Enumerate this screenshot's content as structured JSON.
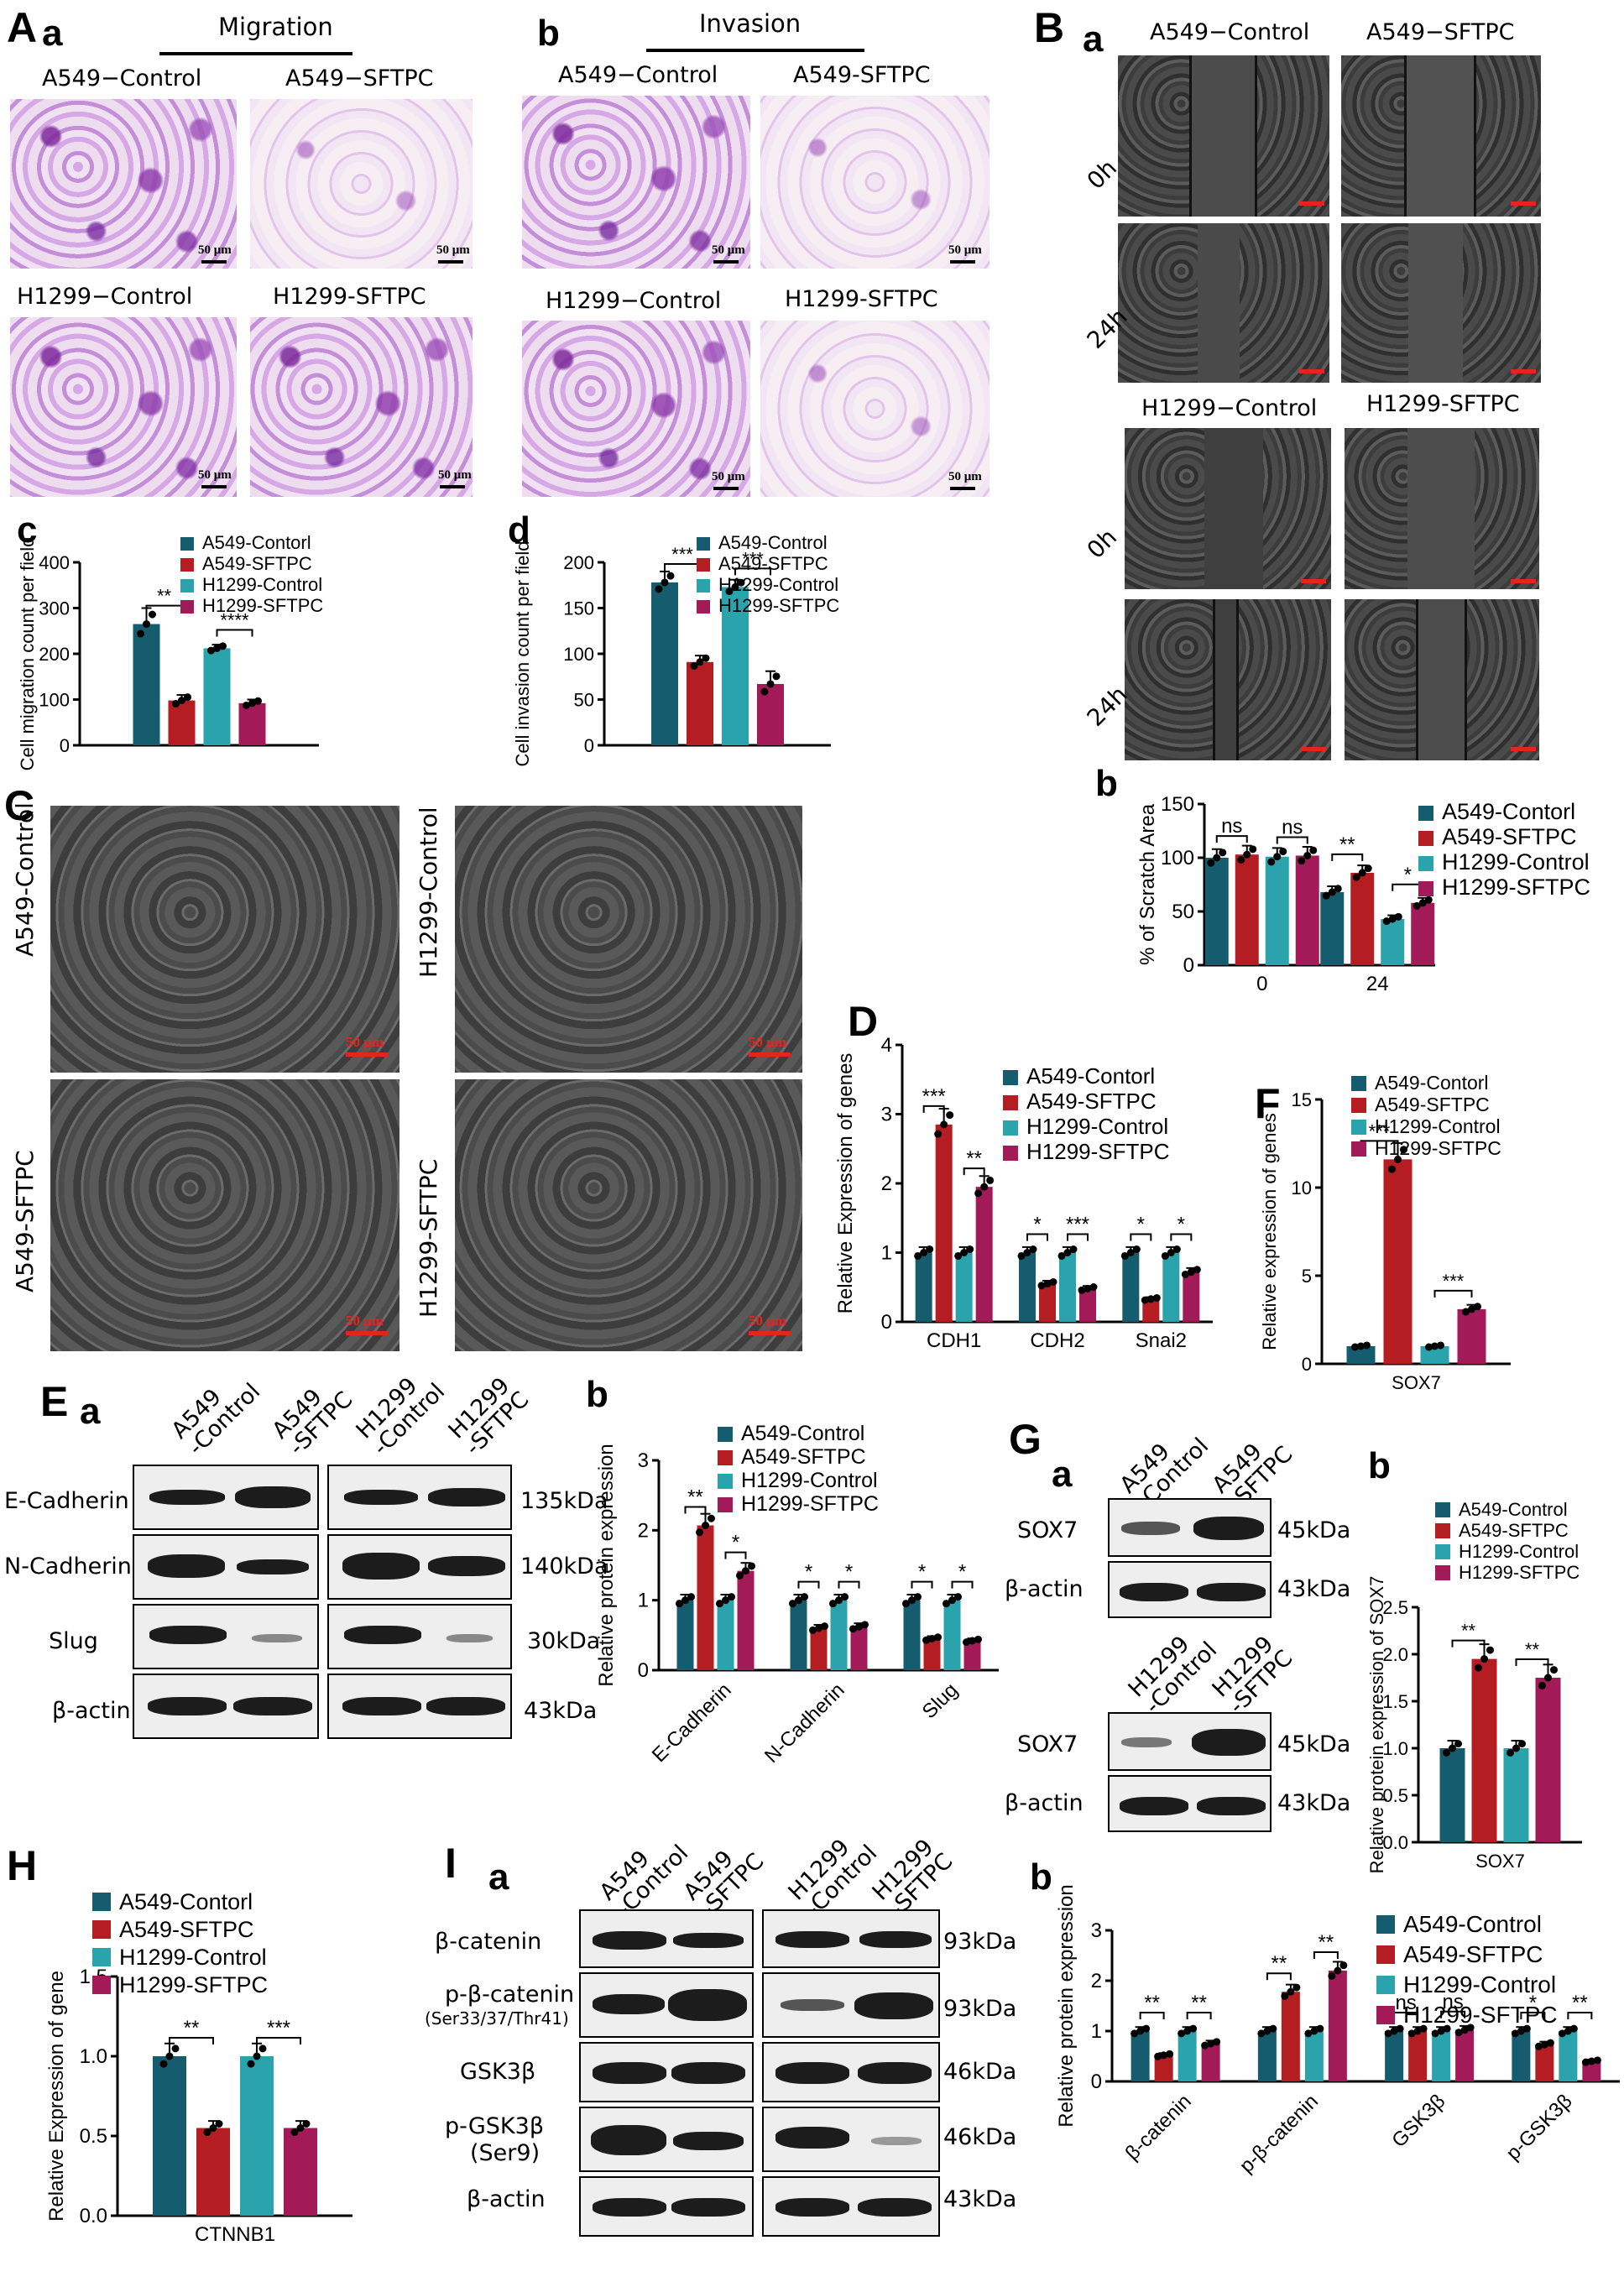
{
  "panels": {
    "A": "A",
    "B": "B",
    "C": "C",
    "D": "D",
    "E": "E",
    "F": "F",
    "G": "G",
    "H": "H",
    "I": "I"
  },
  "sub": {
    "a": "a",
    "b": "b",
    "c": "c",
    "d": "d"
  },
  "titles": {
    "migration": "Migration",
    "invasion": "Invasion"
  },
  "labels": {
    "a549_control": "A549−Control",
    "a549_sftpc": "A549−SFTPC",
    "h1299_control": "H1299−Control",
    "h1299_sftpc": "H1299-SFTPC",
    "a549_control_c": "A549-Control",
    "a549_sftpc_c": "A549-SFTPC",
    "h1299_control_c": "H1299-Control",
    "h1299_sftpc_c": "H1299-SFTPC",
    "t0": "0h",
    "t24": "24h"
  },
  "scale": {
    "um50": "50 μm"
  },
  "blot_headers": {
    "a549_control": [
      "A549",
      "-Control"
    ],
    "a549_sftpc": [
      "A549",
      "-SFTPC"
    ],
    "h1299_control": [
      "H1299",
      "-Control"
    ],
    "h1299_sftpc": [
      "H1299",
      "-SFTPC"
    ]
  },
  "blotE": {
    "rows": [
      "E-Cadherin",
      "N-Cadherin",
      "Slug",
      "β-actin"
    ],
    "kda": [
      "135kDa",
      "140kDa",
      "30kDa",
      "43kDa"
    ]
  },
  "blotG": {
    "rows": [
      "SOX7",
      "β-actin"
    ],
    "kda": [
      "45kDa",
      "43kDa"
    ]
  },
  "blotI": {
    "rows": [
      "β-catenin",
      "p-β-catenin",
      "GSK3β",
      "p-GSK3β",
      "β-actin"
    ],
    "subs": [
      "(Ser33/37/Thr41)",
      "(Ser9)"
    ],
    "kda": [
      "93kDa",
      "93kDa",
      "46kDa",
      "46kDa",
      "43kDa"
    ]
  },
  "colors": {
    "a549_control": "#155d6e",
    "a549_sftpc": "#b41e23",
    "h1299_control": "#2aa3ad",
    "h1299_sftpc": "#a31a59"
  },
  "chart_data": [
    {
      "id": "Ac",
      "type": "bar",
      "ylabel": "Cell migration count per field",
      "ylim": [
        0,
        400
      ],
      "yticks": [
        0,
        100,
        200,
        300,
        400
      ],
      "legend": [
        "A549-Contorl",
        "A549-SFTPC",
        "H1299-Control",
        "H1299-SFTPC"
      ],
      "categories": [
        ""
      ],
      "series": [
        {
          "name": "A549-Contorl",
          "values": [
            265
          ]
        },
        {
          "name": "A549-SFTPC",
          "values": [
            98
          ]
        },
        {
          "name": "H1299-Control",
          "values": [
            212
          ]
        },
        {
          "name": "H1299-SFTPC",
          "values": [
            92
          ]
        }
      ],
      "errors": [
        35,
        12,
        8,
        8
      ],
      "sig": [
        {
          "label": "**",
          "a": 0,
          "b": 1
        },
        {
          "label": "****",
          "a": 2,
          "b": 3
        }
      ]
    },
    {
      "id": "Ad",
      "type": "bar",
      "ylabel": "Cell invasion count per field",
      "ylim": [
        0,
        200
      ],
      "yticks": [
        0,
        50,
        100,
        150,
        200
      ],
      "legend": [
        "A549-Control",
        "A549-SFTPC",
        "H1299-Control",
        "H1299-SFTPC"
      ],
      "categories": [
        ""
      ],
      "series": [
        {
          "name": "A549-Control",
          "values": [
            178
          ]
        },
        {
          "name": "A549-SFTPC",
          "values": [
            91
          ]
        },
        {
          "name": "H1299-Control",
          "values": [
            173
          ]
        },
        {
          "name": "H1299-SFTPC",
          "values": [
            67
          ]
        }
      ],
      "errors": [
        12,
        7,
        8,
        14
      ],
      "sig": [
        {
          "label": "***",
          "a": 0,
          "b": 1
        },
        {
          "label": "***",
          "a": 2,
          "b": 3
        }
      ]
    },
    {
      "id": "Bb",
      "type": "bar",
      "ylabel": "% of Scratch Area",
      "ylim": [
        0,
        150
      ],
      "yticks": [
        0,
        50,
        100,
        150
      ],
      "legend": [
        "A549-Contorl",
        "A549-SFTPC",
        "H1299-Control",
        "H1299-SFTPC"
      ],
      "categories": [
        "0",
        "24"
      ],
      "series": [
        {
          "name": "A549-Contorl",
          "values": [
            100,
            68
          ]
        },
        {
          "name": "A549-SFTPC",
          "values": [
            103,
            86
          ]
        },
        {
          "name": "H1299-Control",
          "values": [
            101,
            43
          ]
        },
        {
          "name": "H1299-SFTPC",
          "values": [
            102,
            58
          ]
        }
      ],
      "sig": [
        {
          "label": "ns",
          "g": 0,
          "a": 0,
          "b": 1
        },
        {
          "label": "ns",
          "g": 0,
          "a": 2,
          "b": 3
        },
        {
          "label": "**",
          "g": 1,
          "a": 0,
          "b": 1
        },
        {
          "label": "*",
          "g": 1,
          "a": 2,
          "b": 3
        }
      ]
    },
    {
      "id": "D",
      "type": "bar",
      "ylabel": "Relative Expression of genes",
      "ylim": [
        0,
        4
      ],
      "yticks": [
        0,
        1,
        2,
        3,
        4
      ],
      "legend": [
        "A549-Contorl",
        "A549-SFTPC",
        "H1299-Control",
        "H1299-SFTPC"
      ],
      "categories": [
        "CDH1",
        "CDH2",
        "Snai2"
      ],
      "series": [
        {
          "name": "A549-Contorl",
          "values": [
            1.0,
            1.0,
            1.0
          ]
        },
        {
          "name": "A549-SFTPC",
          "values": [
            2.85,
            0.55,
            0.33
          ]
        },
        {
          "name": "H1299-Control",
          "values": [
            1.0,
            1.0,
            1.0
          ]
        },
        {
          "name": "H1299-SFTPC",
          "values": [
            1.95,
            0.48,
            0.72
          ]
        }
      ],
      "sig": [
        {
          "label": "***",
          "g": 0,
          "a": 0,
          "b": 1
        },
        {
          "label": "**",
          "g": 0,
          "a": 2,
          "b": 3
        },
        {
          "label": "*",
          "g": 1,
          "a": 0,
          "b": 1
        },
        {
          "label": "***",
          "g": 1,
          "a": 2,
          "b": 3
        },
        {
          "label": "*",
          "g": 2,
          "a": 0,
          "b": 1
        },
        {
          "label": "*",
          "g": 2,
          "a": 2,
          "b": 3
        }
      ]
    },
    {
      "id": "Eb",
      "type": "bar",
      "ylabel": "Relative protein expression",
      "ylim": [
        0,
        3
      ],
      "yticks": [
        0,
        1,
        2,
        3
      ],
      "legend": [
        "A549-Control",
        "A549-SFTPC",
        "H1299-Control",
        "H1299-SFTPC"
      ],
      "categories": [
        "E-Cadherin",
        "N-Cadherin",
        "Slug"
      ],
      "series": [
        {
          "name": "A549-Control",
          "values": [
            1.0,
            1.0,
            1.0
          ]
        },
        {
          "name": "A549-SFTPC",
          "values": [
            2.07,
            0.6,
            0.45
          ]
        },
        {
          "name": "H1299-Control",
          "values": [
            1.0,
            1.0,
            1.0
          ]
        },
        {
          "name": "H1299-SFTPC",
          "values": [
            1.42,
            0.62,
            0.42
          ]
        }
      ],
      "sig": [
        {
          "label": "**",
          "g": 0,
          "a": 0,
          "b": 1
        },
        {
          "label": "*",
          "g": 0,
          "a": 2,
          "b": 3
        },
        {
          "label": "*",
          "g": 1,
          "a": 0,
          "b": 1
        },
        {
          "label": "*",
          "g": 1,
          "a": 2,
          "b": 3
        },
        {
          "label": "*",
          "g": 2,
          "a": 0,
          "b": 1
        },
        {
          "label": "*",
          "g": 2,
          "a": 2,
          "b": 3
        }
      ]
    },
    {
      "id": "F",
      "type": "bar",
      "ylabel": "Relative expression of genes",
      "ylim": [
        0,
        15
      ],
      "yticks": [
        0,
        5,
        10,
        15
      ],
      "legend": [
        "A549-Contorl",
        "A549-SFTPC",
        "H1299-Control",
        "H1299-SFTPC"
      ],
      "categories": [
        "SOX7"
      ],
      "series": [
        {
          "name": "A549-Contorl",
          "values": [
            1.0
          ]
        },
        {
          "name": "A549-SFTPC",
          "values": [
            11.6
          ]
        },
        {
          "name": "H1299-Control",
          "values": [
            1.0
          ]
        },
        {
          "name": "H1299-SFTPC",
          "values": [
            3.1
          ]
        }
      ],
      "sig": [
        {
          "label": "***",
          "g": 0,
          "a": 0,
          "b": 1
        },
        {
          "label": "***",
          "g": 0,
          "a": 2,
          "b": 3
        }
      ]
    },
    {
      "id": "Gb",
      "type": "bar",
      "ylabel": "Relative protein expression of SOX7",
      "ylim": [
        0,
        2.5
      ],
      "yticks": [
        0.0,
        0.5,
        1.0,
        1.5,
        2.0,
        2.5
      ],
      "legend": [
        "A549-Control",
        "A549-SFTPC",
        "H1299-Control",
        "H1299-SFTPC"
      ],
      "categories": [
        "SOX7"
      ],
      "series": [
        {
          "name": "A549-Control",
          "values": [
            1.0
          ]
        },
        {
          "name": "A549-SFTPC",
          "values": [
            1.95
          ]
        },
        {
          "name": "H1299-Control",
          "values": [
            1.0
          ]
        },
        {
          "name": "H1299-SFTPC",
          "values": [
            1.75
          ]
        }
      ],
      "sig": [
        {
          "label": "**",
          "g": 0,
          "a": 0,
          "b": 1
        },
        {
          "label": "**",
          "g": 0,
          "a": 2,
          "b": 3
        }
      ]
    },
    {
      "id": "H",
      "type": "bar",
      "ylabel": "Relative Expression of gene",
      "ylim": [
        0,
        1.5
      ],
      "yticks": [
        0.0,
        0.5,
        1.0,
        1.5
      ],
      "legend": [
        "A549-Contorl",
        "A549-SFTPC",
        "H1299-Control",
        "H1299-SFTPC"
      ],
      "categories": [
        "CTNNB1"
      ],
      "series": [
        {
          "name": "A549-Contorl",
          "values": [
            1.0
          ]
        },
        {
          "name": "A549-SFTPC",
          "values": [
            0.55
          ]
        },
        {
          "name": "H1299-Control",
          "values": [
            1.0
          ]
        },
        {
          "name": "H1299-SFTPC",
          "values": [
            0.55
          ]
        }
      ],
      "sig": [
        {
          "label": "**",
          "g": 0,
          "a": 0,
          "b": 1
        },
        {
          "label": "***",
          "g": 0,
          "a": 2,
          "b": 3
        }
      ]
    },
    {
      "id": "Ib",
      "type": "bar",
      "ylabel": "Relative protein expression",
      "ylim": [
        0,
        3
      ],
      "yticks": [
        0,
        1,
        2,
        3
      ],
      "legend": [
        "A549-Control",
        "A549-SFTPC",
        "H1299-Control",
        "H1299-SFTPC"
      ],
      "categories": [
        "β-catenin",
        "p-β-catenin",
        "GSK3β",
        "p-GSK3β"
      ],
      "series": [
        {
          "name": "A549-Control",
          "values": [
            1.0,
            1.0,
            1.0,
            1.0
          ]
        },
        {
          "name": "A549-SFTPC",
          "values": [
            0.52,
            1.78,
            1.0,
            0.73
          ]
        },
        {
          "name": "H1299-Control",
          "values": [
            1.0,
            1.0,
            1.0,
            1.0
          ]
        },
        {
          "name": "H1299-SFTPC",
          "values": [
            0.75,
            2.2,
            1.02,
            0.4
          ]
        }
      ],
      "sig": [
        {
          "label": "**",
          "g": 0,
          "a": 0,
          "b": 1
        },
        {
          "label": "**",
          "g": 0,
          "a": 2,
          "b": 3
        },
        {
          "label": "**",
          "g": 1,
          "a": 0,
          "b": 1
        },
        {
          "label": "**",
          "g": 1,
          "a": 2,
          "b": 3
        },
        {
          "label": "ns",
          "g": 2,
          "a": 0,
          "b": 1
        },
        {
          "label": "ns",
          "g": 2,
          "a": 2,
          "b": 3
        },
        {
          "label": "*",
          "g": 3,
          "a": 0,
          "b": 1
        },
        {
          "label": "**",
          "g": 3,
          "a": 2,
          "b": 3
        }
      ]
    }
  ]
}
